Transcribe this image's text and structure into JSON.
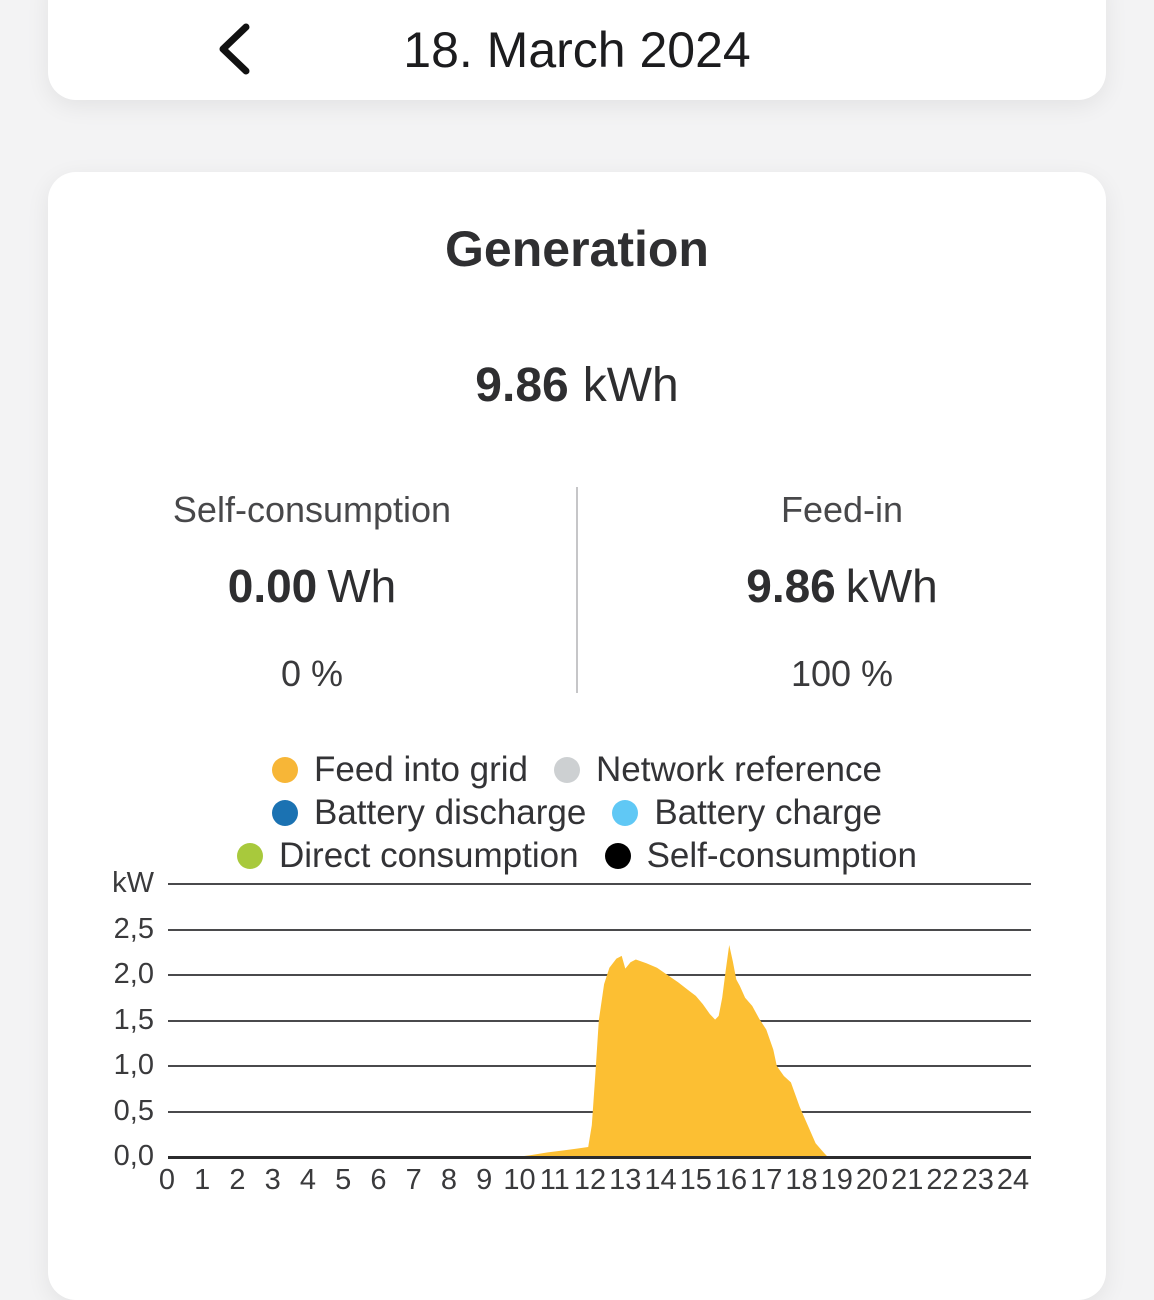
{
  "header": {
    "title": "18. March 2024"
  },
  "summary": {
    "title": "Generation",
    "total_value": "9.86",
    "total_unit": "kWh",
    "left": {
      "label": "Self-consumption",
      "value": "0.00",
      "unit": "Wh",
      "percent": "0 %"
    },
    "right": {
      "label": "Feed-in",
      "value": "9.86",
      "unit": "kWh",
      "percent": "100 %"
    }
  },
  "colors": {
    "area_fill": "#FCBF33",
    "grid_line": "#4a4a4c",
    "axis_line": "#2b2b2d"
  },
  "chart_data": {
    "type": "area",
    "title": "Generation",
    "ylabel_unit": "kW",
    "ylim": [
      0,
      3
    ],
    "xlim": [
      0,
      24
    ],
    "grid": true,
    "y_ticks": [
      {
        "label": "kW",
        "value": 3.0
      },
      {
        "label": "2,5",
        "value": 2.5
      },
      {
        "label": "2,0",
        "value": 2.0
      },
      {
        "label": "1,5",
        "value": 1.5
      },
      {
        "label": "1,0",
        "value": 1.0
      },
      {
        "label": "0,5",
        "value": 0.5
      },
      {
        "label": "0,0",
        "value": 0.0
      }
    ],
    "x_ticks": [
      0,
      1,
      2,
      3,
      4,
      5,
      6,
      7,
      8,
      9,
      10,
      11,
      12,
      13,
      14,
      15,
      16,
      17,
      18,
      19,
      20,
      21,
      22,
      23,
      24
    ],
    "legend": {
      "rows": [
        [
          {
            "label": "Feed into grid",
            "color": "#F7B637"
          },
          {
            "label": "Network reference",
            "color": "#CDD0D2"
          }
        ],
        [
          {
            "label": "Battery discharge",
            "color": "#1B72B2"
          },
          {
            "label": "Battery charge",
            "color": "#60C8F5"
          }
        ],
        [
          {
            "label": "Direct consumption",
            "color": "#A8C93C"
          },
          {
            "label": "Self-consumption",
            "color": "#000000"
          }
        ]
      ]
    },
    "series": [
      {
        "name": "Feed into grid",
        "color": "#FCBF33",
        "points_hour_kw": [
          [
            0,
            0
          ],
          [
            9.9,
            0
          ],
          [
            10.3,
            0.02
          ],
          [
            10.8,
            0.05
          ],
          [
            11.2,
            0.07
          ],
          [
            11.6,
            0.09
          ],
          [
            11.95,
            0.11
          ],
          [
            12.05,
            0.35
          ],
          [
            12.15,
            0.9
          ],
          [
            12.25,
            1.5
          ],
          [
            12.4,
            1.9
          ],
          [
            12.55,
            2.08
          ],
          [
            12.75,
            2.18
          ],
          [
            12.9,
            2.21
          ],
          [
            13.0,
            2.07
          ],
          [
            13.15,
            2.14
          ],
          [
            13.3,
            2.17
          ],
          [
            13.6,
            2.13
          ],
          [
            13.9,
            2.08
          ],
          [
            14.2,
            2.0
          ],
          [
            14.5,
            1.92
          ],
          [
            14.8,
            1.83
          ],
          [
            15.0,
            1.77
          ],
          [
            15.2,
            1.68
          ],
          [
            15.4,
            1.57
          ],
          [
            15.55,
            1.51
          ],
          [
            15.65,
            1.55
          ],
          [
            15.75,
            1.75
          ],
          [
            15.85,
            2.05
          ],
          [
            15.95,
            2.33
          ],
          [
            16.05,
            2.15
          ],
          [
            16.15,
            1.95
          ],
          [
            16.25,
            1.88
          ],
          [
            16.4,
            1.75
          ],
          [
            16.6,
            1.66
          ],
          [
            16.8,
            1.52
          ],
          [
            17.0,
            1.4
          ],
          [
            17.2,
            1.18
          ],
          [
            17.3,
            1.0
          ],
          [
            17.5,
            0.89
          ],
          [
            17.7,
            0.82
          ],
          [
            17.95,
            0.55
          ],
          [
            18.2,
            0.33
          ],
          [
            18.4,
            0.15
          ],
          [
            18.65,
            0.04
          ],
          [
            18.75,
            0
          ],
          [
            24,
            0
          ]
        ]
      }
    ]
  }
}
